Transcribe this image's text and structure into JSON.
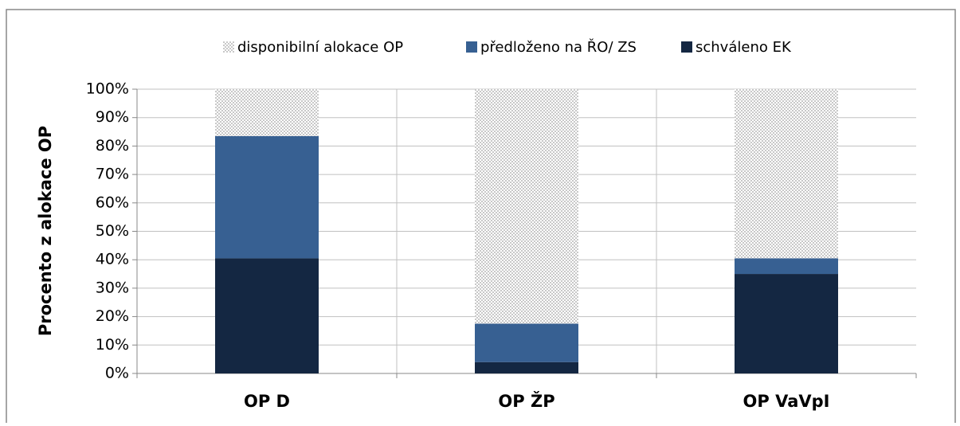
{
  "chart_data": {
    "type": "stacked_bar",
    "y_label": "Procento z alokace OP",
    "categories": [
      "OP D",
      "OP ŽP",
      "OP VaVpI"
    ],
    "series": [
      {
        "name": "disponibilní alokace OP",
        "color": "#c8c8c8",
        "pattern": true,
        "values": [
          16.5,
          82.5,
          59.5
        ]
      },
      {
        "name": "předloženo na ŘO/ ZS",
        "color": "#376092",
        "values": [
          43,
          13.5,
          5.5
        ]
      },
      {
        "name": "schváleno EK",
        "color": "#142742",
        "values": [
          40.5,
          4,
          35
        ]
      }
    ],
    "ylim": [
      0,
      100
    ],
    "yticks": [
      {
        "value": 0,
        "label": "0%"
      },
      {
        "value": 10,
        "label": "10%"
      },
      {
        "value": 20,
        "label": "20%"
      },
      {
        "value": 30,
        "label": "30%"
      },
      {
        "value": 40,
        "label": "40%"
      },
      {
        "value": 50,
        "label": "50%"
      },
      {
        "value": 60,
        "label": "60%"
      },
      {
        "value": 70,
        "label": "70%"
      },
      {
        "value": 80,
        "label": "80%"
      },
      {
        "value": 90,
        "label": "90%"
      },
      {
        "value": 100,
        "label": "100%"
      }
    ],
    "grid": true
  }
}
